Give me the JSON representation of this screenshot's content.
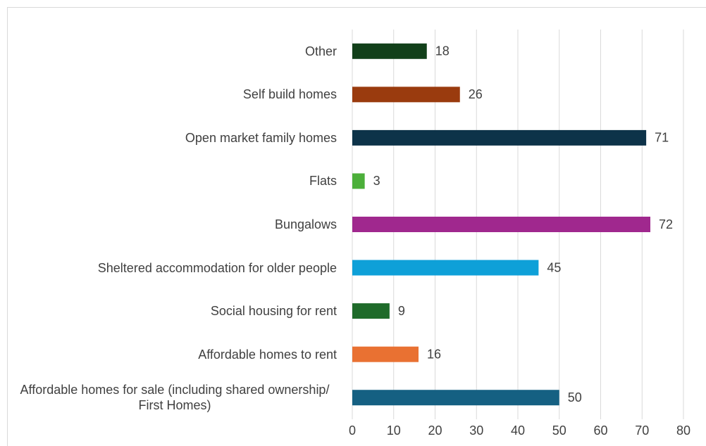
{
  "chart_data": {
    "type": "bar",
    "orientation": "horizontal",
    "categories": [
      "Other",
      "Self build homes",
      "Open market family homes",
      "Flats",
      "Bungalows",
      "Sheltered accommodation for older people",
      "Social housing for rent",
      "Affordable homes to rent",
      "Affordable homes for sale (including shared ownership/ First Homes)"
    ],
    "values": [
      18,
      26,
      71,
      3,
      72,
      45,
      9,
      16,
      50
    ],
    "colors": [
      "#12401a",
      "#9a3b0e",
      "#0d3349",
      "#4caf3a",
      "#a0288e",
      "#0ea0d8",
      "#1f6b2a",
      "#e97132",
      "#156082"
    ],
    "xlim": [
      0,
      80
    ],
    "xticks": [
      0,
      10,
      20,
      30,
      40,
      50,
      60,
      70,
      80
    ],
    "grid": true
  }
}
